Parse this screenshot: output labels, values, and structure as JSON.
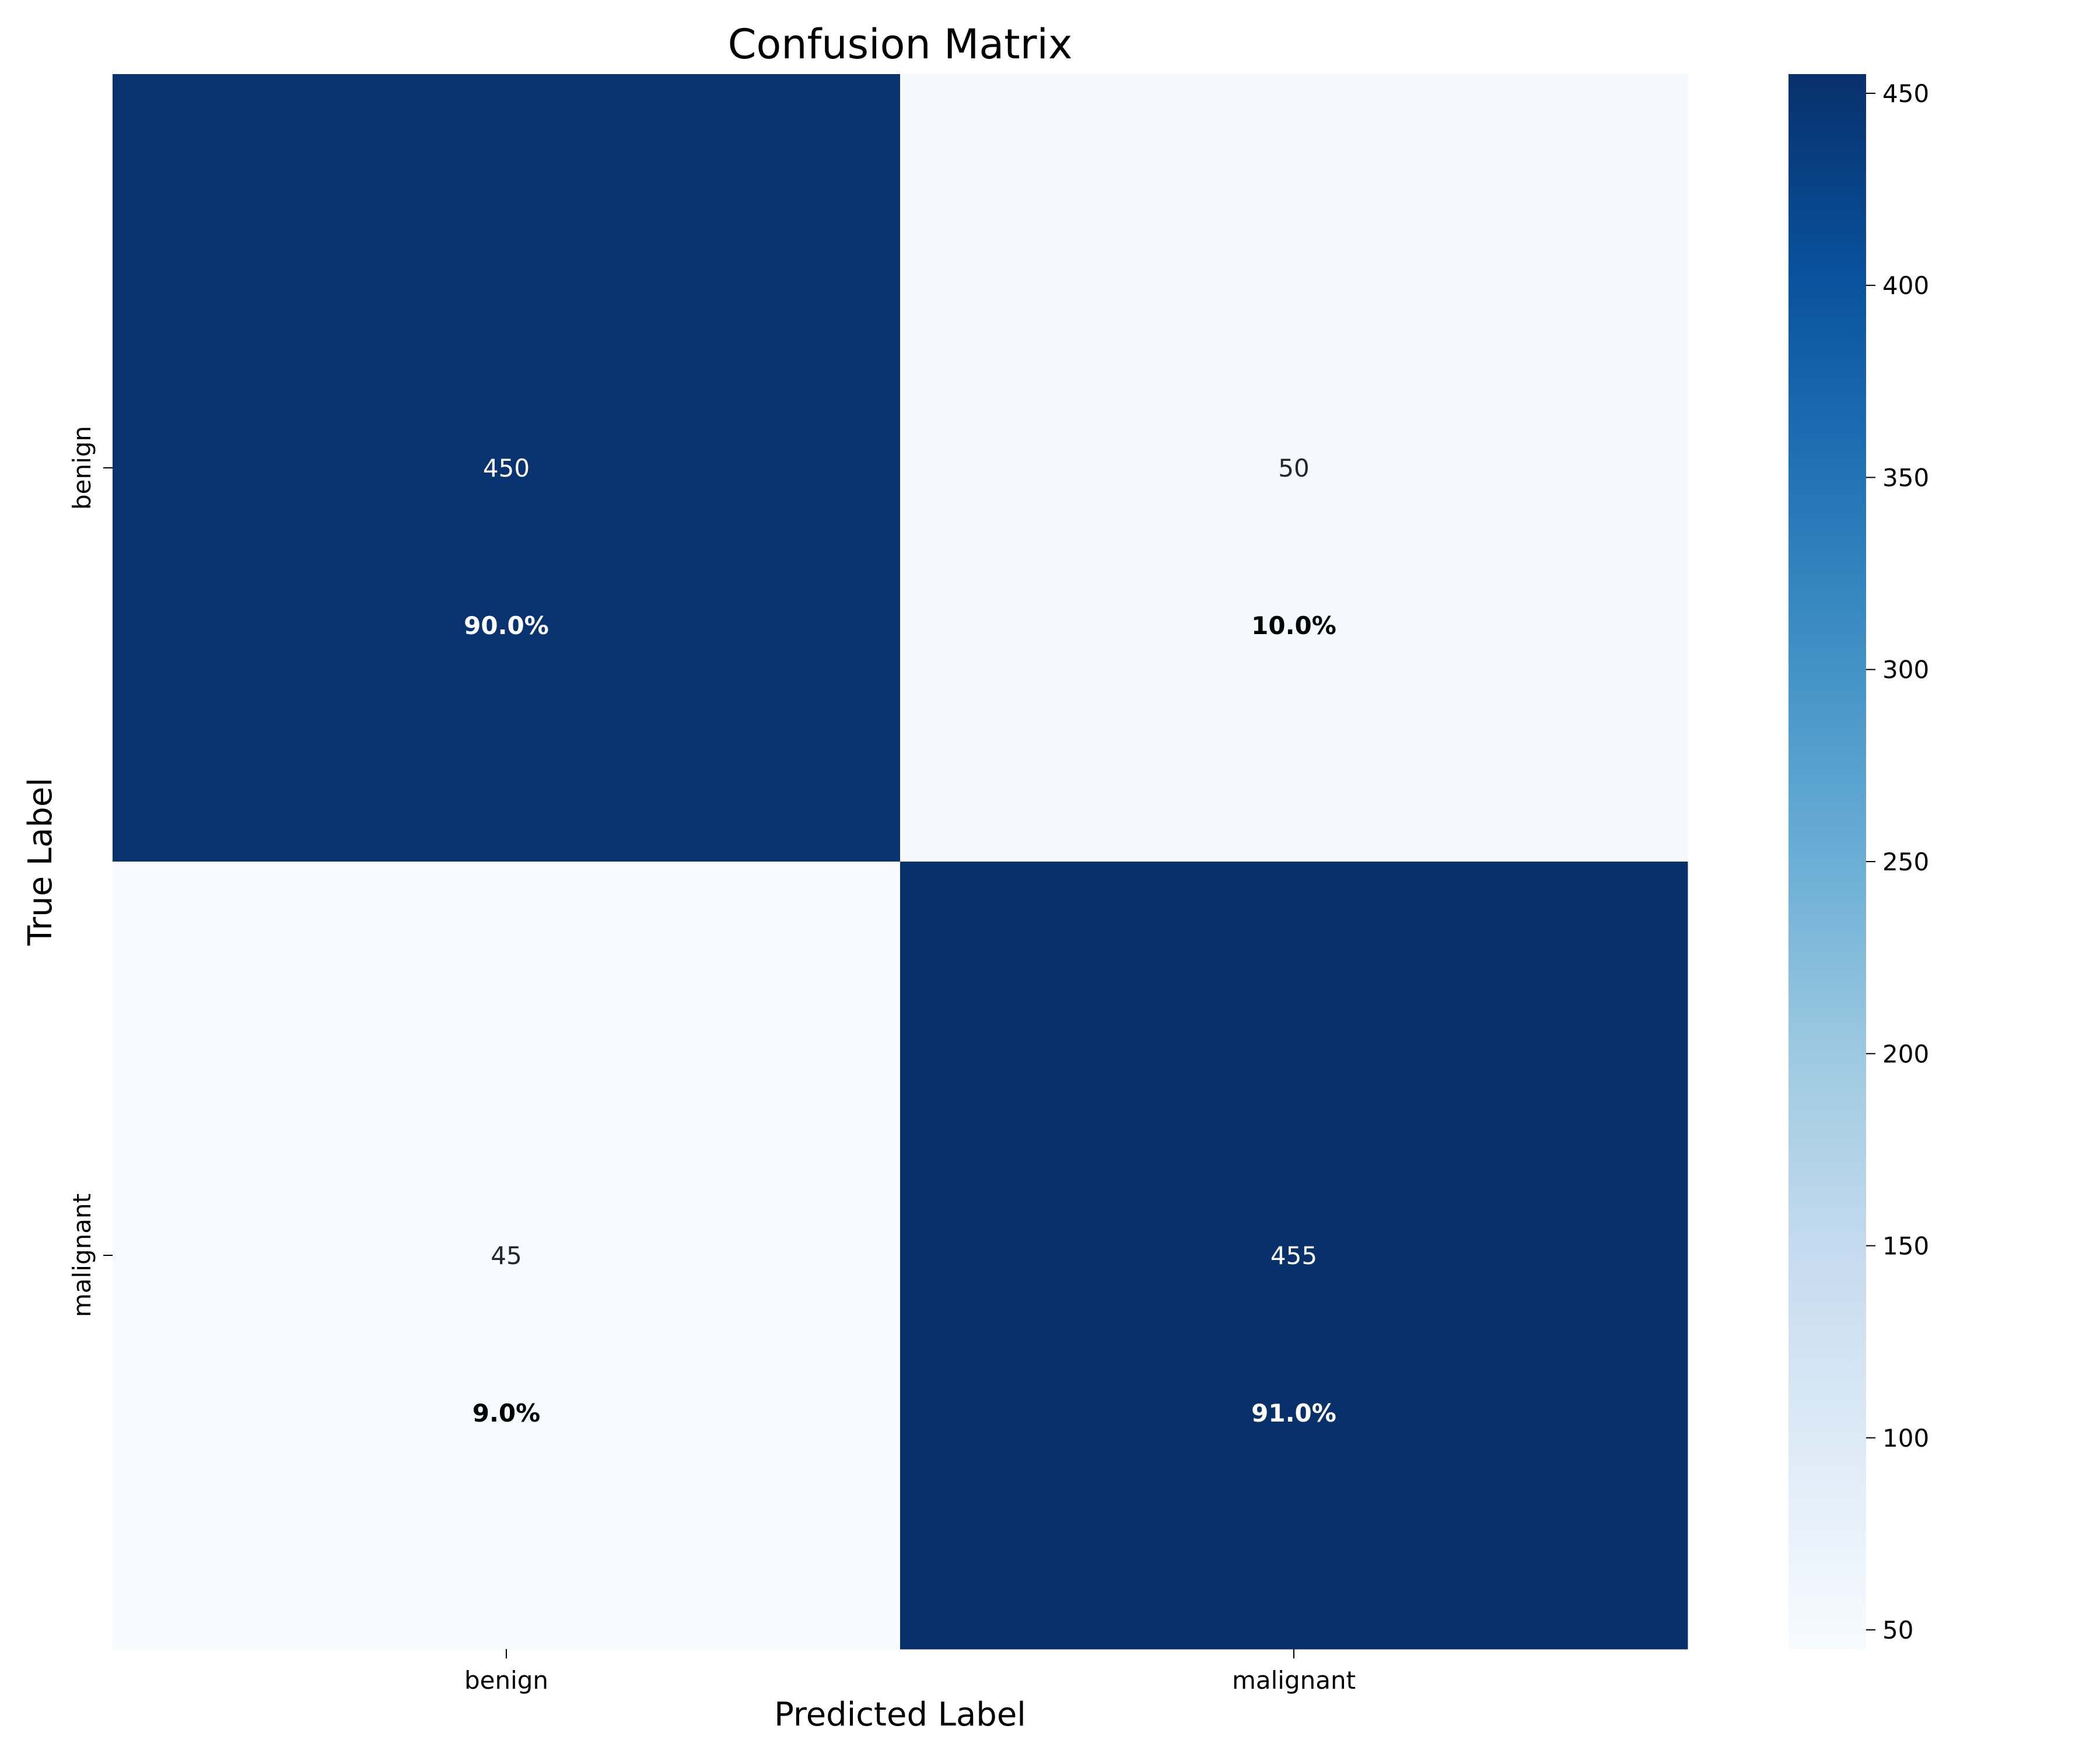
{
  "chart_data": {
    "type": "heatmap",
    "title": "Confusion Matrix",
    "xlabel": "Predicted Label",
    "ylabel": "True Label",
    "x_categories": [
      "benign",
      "malignant"
    ],
    "y_categories": [
      "benign",
      "malignant"
    ],
    "values": [
      [
        450,
        50
      ],
      [
        45,
        455
      ]
    ],
    "percent_labels": [
      [
        "90.0%",
        "10.0%"
      ],
      [
        "9.0%",
        "91.0%"
      ]
    ],
    "colormap": "Blues",
    "colormap_stops": [
      "#f7fbff",
      "#deebf7",
      "#c6dbef",
      "#9ecae1",
      "#6baed6",
      "#4292c6",
      "#2171b5",
      "#08519c",
      "#08306b"
    ],
    "colorbar": {
      "range": [
        45,
        455
      ],
      "ticks": [
        50,
        100,
        150,
        200,
        250,
        300,
        350,
        400,
        450
      ]
    }
  }
}
